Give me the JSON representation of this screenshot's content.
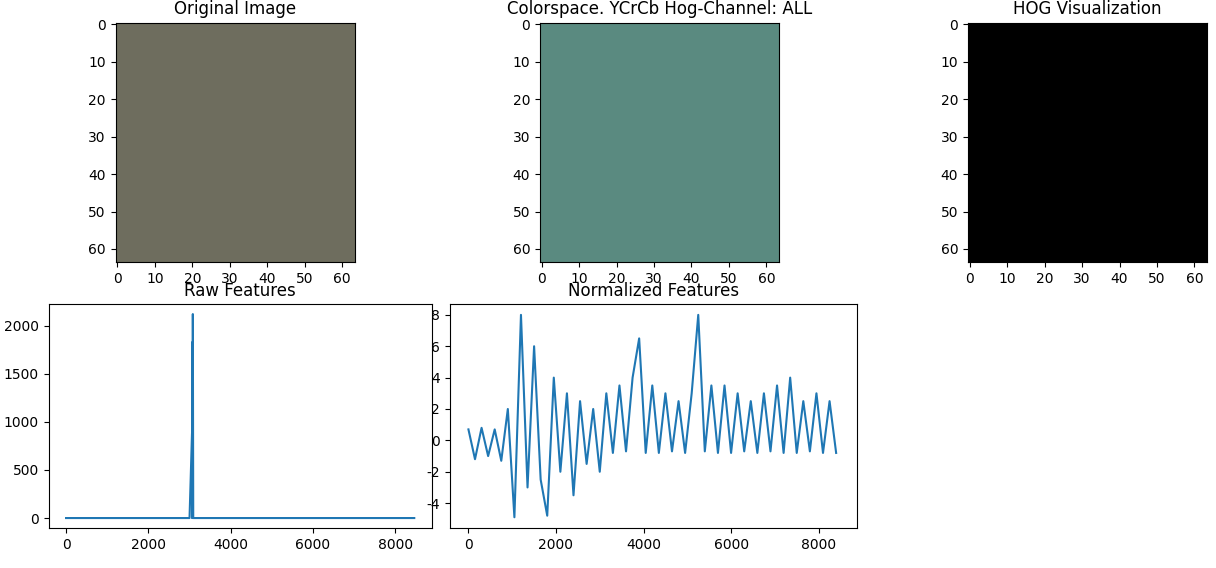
{
  "chart_data": [
    {
      "type": "image",
      "title": "Original Image",
      "color": "#6e6d5e",
      "xlim": [
        -0.5,
        63.5
      ],
      "ylim": [
        63.5,
        -0.5
      ],
      "xticks": [
        0,
        10,
        20,
        30,
        40,
        50,
        60
      ],
      "yticks": [
        0,
        10,
        20,
        30,
        40,
        50,
        60
      ]
    },
    {
      "type": "image",
      "title": "Colorspace. YCrCb Hog-Channel: ALL",
      "color": "#5a8a80",
      "xlim": [
        -0.5,
        63.5
      ],
      "ylim": [
        63.5,
        -0.5
      ],
      "xticks": [
        0,
        10,
        20,
        30,
        40,
        50,
        60
      ],
      "yticks": [
        0,
        10,
        20,
        30,
        40,
        50,
        60
      ]
    },
    {
      "type": "image",
      "title": "HOG Visualization",
      "color": "#000000",
      "xlim": [
        -0.5,
        63.5
      ],
      "ylim": [
        63.5,
        -0.5
      ],
      "xticks": [
        0,
        10,
        20,
        30,
        40,
        50,
        60
      ],
      "yticks": [
        0,
        10,
        20,
        30,
        40,
        50,
        60
      ]
    },
    {
      "type": "line",
      "title": "Raw Features",
      "color": "#1f77b4",
      "x": [
        0,
        3000,
        3060,
        3065,
        3070,
        3075,
        3080,
        3090,
        3100,
        8460
      ],
      "values": [
        0,
        0,
        880,
        0,
        1830,
        0,
        2120,
        0,
        0,
        0
      ],
      "xlim": [
        -423,
        8883
      ],
      "ylim": [
        -106,
        2226
      ],
      "xticks": [
        0,
        2000,
        4000,
        6000,
        8000
      ],
      "yticks": [
        0,
        500,
        1000,
        1500,
        2000
      ]
    },
    {
      "type": "line",
      "title": "Normalized Features",
      "color": "#1f77b4",
      "x": [
        0,
        150,
        300,
        450,
        600,
        750,
        900,
        1050,
        1200,
        1350,
        1500,
        1650,
        1800,
        1950,
        2100,
        2250,
        2400,
        2550,
        2700,
        2850,
        3000,
        3150,
        3300,
        3450,
        3600,
        3750,
        3900,
        4050,
        4200,
        4350,
        4500,
        4650,
        4800,
        4950,
        5100,
        5250,
        5400,
        5550,
        5700,
        5850,
        6000,
        6150,
        6300,
        6450,
        6600,
        6750,
        6900,
        7050,
        7200,
        7350,
        7500,
        7650,
        7800,
        7950,
        8100,
        8250,
        8400
      ],
      "values": [
        0.7,
        -1.2,
        0.8,
        -1.0,
        0.7,
        -1.3,
        2.0,
        -4.9,
        8.0,
        -3.0,
        6.0,
        -2.5,
        -4.8,
        4.0,
        -2.0,
        3.0,
        -3.5,
        2.5,
        -1.5,
        2.0,
        -2.0,
        3.0,
        -0.8,
        3.5,
        -0.7,
        4.0,
        6.5,
        -0.8,
        3.5,
        -0.8,
        3.0,
        -0.7,
        2.5,
        -0.8,
        3.0,
        8.0,
        -0.7,
        3.5,
        -0.8,
        3.5,
        -0.8,
        3.0,
        -0.7,
        2.5,
        -0.8,
        3.0,
        -0.7,
        3.5,
        -0.8,
        4.0,
        -0.8,
        2.5,
        -0.7,
        3.0,
        -0.8,
        2.5,
        -0.8
      ],
      "xlim": [
        -423,
        8883
      ],
      "ylim": [
        -5.6,
        8.7
      ],
      "xticks": [
        0,
        2000,
        4000,
        6000,
        8000
      ],
      "yticks": [
        -4,
        -2,
        0,
        2,
        4,
        6,
        8
      ]
    }
  ]
}
